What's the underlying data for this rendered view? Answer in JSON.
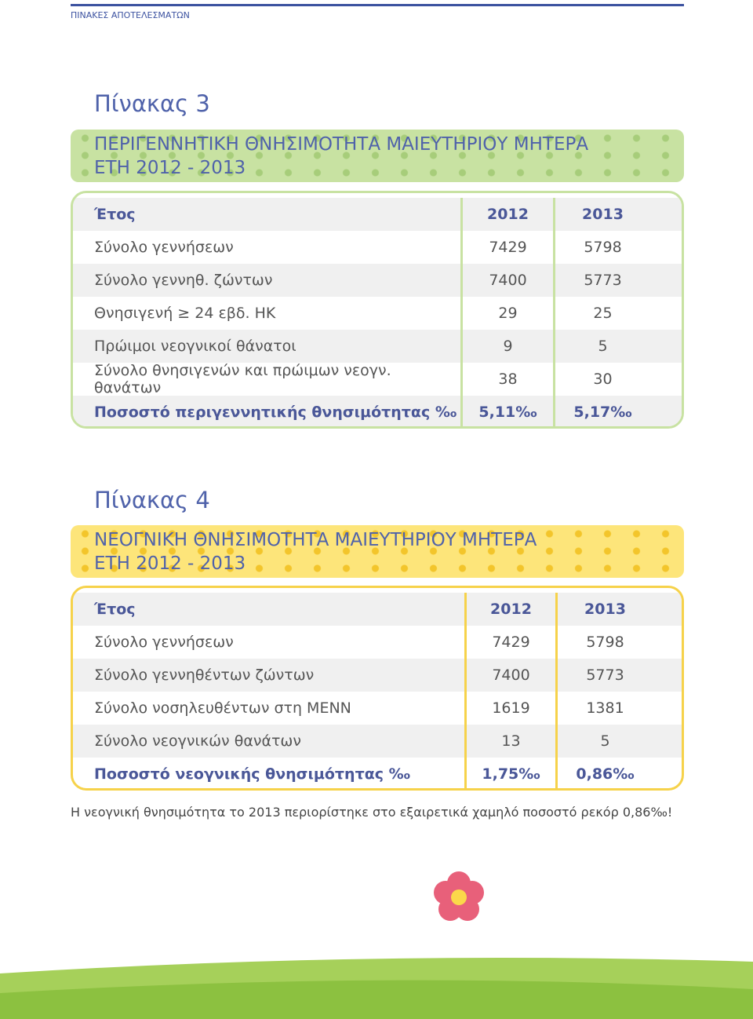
{
  "header": {
    "title": "ΠΙΝΑΚΕΣ ΑΠΟΤΕΛΕΣΜΑΤΩΝ"
  },
  "tables": [
    {
      "title": "Πίνακας 3",
      "heading": [
        "ΠΕΡΙΓΕΝΝΗΤΙΚΗ ΘΝΗΣΙΜΟΤΗΤΑ ΜΑΙΕΥΤΗΡΙΟΥ ΜΗΤΕΡΑ",
        "ΕΤΗ 2012 - 2013"
      ],
      "columns": [
        "Έτος",
        "2012",
        "2013"
      ],
      "rows": [
        [
          "Σύνολο γεννήσεων",
          "7429",
          "5798"
        ],
        [
          "Σύνολο γεννηθ. ζώντων",
          "7400",
          "5773"
        ],
        [
          "Θνησιγενή ≥ 24 εβδ. ΗΚ",
          "29",
          "25"
        ],
        [
          "Πρώιμοι νεογνικοί θάνατοι",
          "9",
          "5"
        ],
        [
          "Σύνολο θνησιγενών και πρώιμων νεογν. θανάτων",
          "38",
          "30"
        ],
        [
          "Ποσοστό περιγεννητικής θνησιμότητας ‰",
          "5,11‰",
          "5,17‰"
        ]
      ]
    },
    {
      "title": "Πίνακας 4",
      "heading": [
        "ΝΕΟΓΝΙΚΗ ΘΝΗΣΙΜΟΤΗΤΑ ΜΑΙΕΥΤΗΡΙΟΥ ΜΗΤΕΡΑ",
        "ΕΤΗ 2012 - 2013"
      ],
      "columns": [
        "Έτος",
        "2012",
        "2013"
      ],
      "rows": [
        [
          "Σύνολο γεννήσεων",
          "7429",
          "5798"
        ],
        [
          "Σύνολο γεννηθέντων ζώντων",
          "7400",
          "5773"
        ],
        [
          "Σύνολο νοσηλευθέντων στη ΜΕΝΝ",
          "1619",
          "1381"
        ],
        [
          "Σύνολο νεογνικών θανάτων",
          "13",
          "5"
        ],
        [
          "Ποσοστό νεογνικής θνησιμότητας ‰",
          "1,75‰",
          "0,86‰"
        ]
      ]
    }
  ],
  "note": "Η νεογνική θνησιμότητα το 2013 περιορίστηκε στο εξαιρετικά χαμηλό ποσοστό ρεκόρ 0,86‰!"
}
